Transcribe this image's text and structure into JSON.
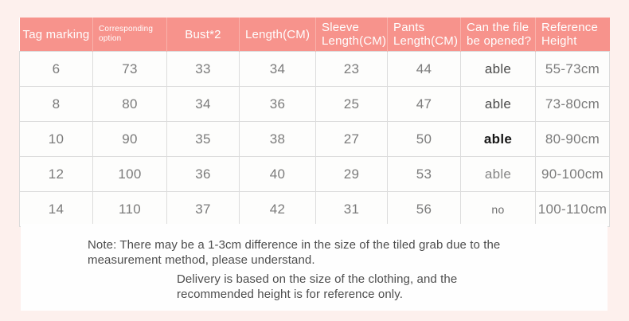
{
  "chart_data": {
    "type": "table",
    "title": "",
    "columns": [
      "Tag marking",
      "Corresponding\noption",
      "Bust*2",
      "Length(CM)",
      "Sleeve\nLength(CM)",
      "Pants\nLength(CM)",
      "Can the file\nbe opened?",
      "Reference\nHeight"
    ],
    "column_ids": [
      "tag_marking",
      "corresponding_option",
      "bust_x2",
      "length_cm",
      "sleeve_length_cm",
      "pants_length_cm",
      "can_open",
      "reference_height"
    ],
    "rows": [
      [
        "6",
        "73",
        "33",
        "34",
        "23",
        "44",
        "able",
        "55-73cm"
      ],
      [
        "8",
        "80",
        "34",
        "36",
        "25",
        "47",
        "able",
        "73-80cm"
      ],
      [
        "10",
        "90",
        "35",
        "38",
        "27",
        "50",
        "able",
        "80-90cm"
      ],
      [
        "12",
        "100",
        "36",
        "40",
        "29",
        "53",
        "able",
        "90-100cm"
      ],
      [
        "14",
        "110",
        "37",
        "42",
        "31",
        "56",
        "no",
        "100-110cm"
      ]
    ]
  },
  "notes": {
    "note1": "Note: There may be a 1-3cm difference in the size of the tiled grab due to the\nmeasurement method, please understand.",
    "note2": "Delivery is based on the size of the clothing, and the\nrecommended height is for reference only."
  },
  "styles": {
    "openable_column": [
      "dark",
      "dark",
      "bold",
      "normal",
      "muted-small"
    ],
    "colors": {
      "page_bg": "#fdf0ed",
      "header_bg": "#f7938c",
      "header_text": "#fefefe",
      "header_divider": "#f9b2ab",
      "cell_bg": "#fdfdfc",
      "cell_text": "#7b7b7b",
      "cell_border": "#dcdcdc",
      "panel_bg": "#fefefe",
      "note_text": "#4d4d4d"
    }
  }
}
